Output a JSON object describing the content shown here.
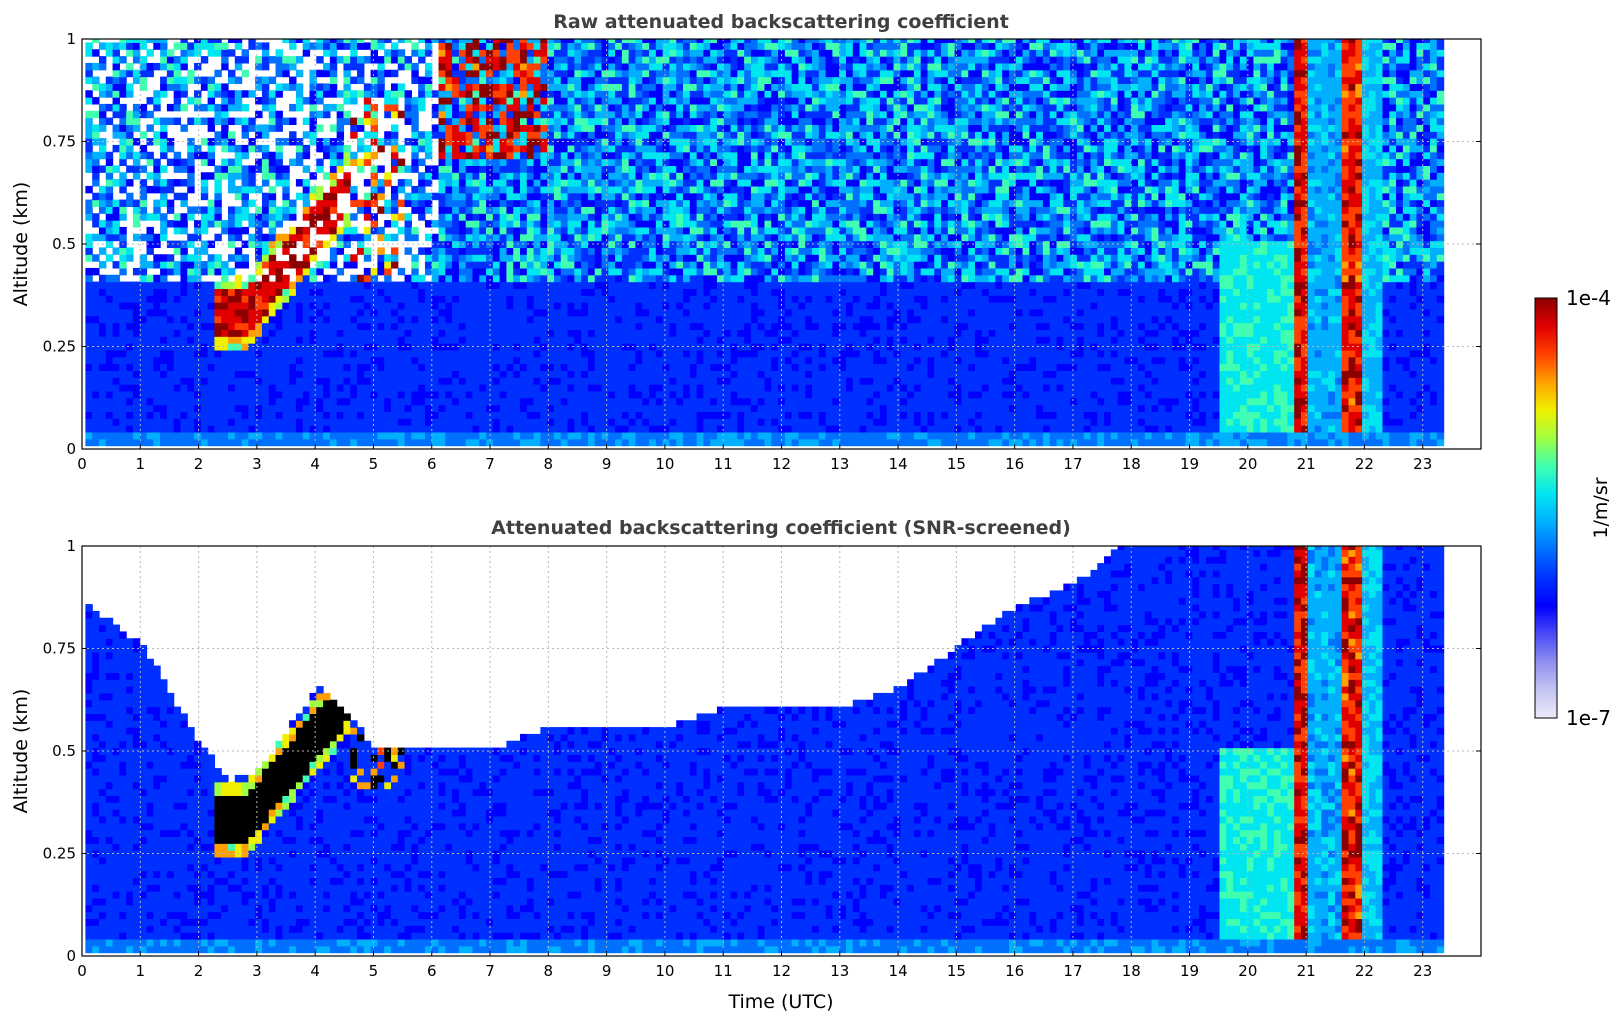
{
  "chart_data": [
    {
      "type": "heatmap",
      "title": "Raw attenuated backscattering coefficient",
      "xlabel": "",
      "ylabel": "Altitude (km)",
      "xlim": [
        0,
        24
      ],
      "ylim": [
        0,
        1
      ],
      "xticks": [
        "0",
        "1",
        "2",
        "3",
        "4",
        "5",
        "6",
        "7",
        "8",
        "9",
        "10",
        "11",
        "12",
        "13",
        "14",
        "15",
        "16",
        "17",
        "18",
        "19",
        "20",
        "21",
        "22",
        "23"
      ],
      "yticks": [
        "0",
        "0.25",
        "0.5",
        "0.75",
        "1"
      ],
      "grid": true,
      "data_end_hour": 23.3,
      "features": [
        {
          "name": "boundary layer plume",
          "x_range": [
            2.2,
            5.5
          ],
          "altitude_km": [
            0.27,
            0.85
          ],
          "level": "high"
        },
        {
          "name": "cloud patches",
          "x_range": [
            6.0,
            7.9
          ],
          "altitude_km": [
            0.7,
            1.0
          ],
          "level": "high"
        },
        {
          "name": "rain column 1",
          "x_range": [
            20.75,
            21.0
          ],
          "altitude_km": [
            0,
            1
          ],
          "level": "high"
        },
        {
          "name": "rain column 2",
          "x_range": [
            21.5,
            21.9
          ],
          "altitude_km": [
            0,
            1
          ],
          "level": "high"
        },
        {
          "name": "enhanced layer",
          "x_range": [
            19.5,
            20.8
          ],
          "altitude_km": [
            0,
            0.5
          ],
          "level": "medium"
        }
      ]
    },
    {
      "type": "heatmap",
      "title": "Attenuated backscattering coefficient (SNR-screened)",
      "xlabel": "Time (UTC)",
      "ylabel": "Altitude (km)",
      "xlim": [
        0,
        24
      ],
      "ylim": [
        0,
        1
      ],
      "xticks": [
        "0",
        "1",
        "2",
        "3",
        "4",
        "5",
        "6",
        "7",
        "8",
        "9",
        "10",
        "11",
        "12",
        "13",
        "14",
        "15",
        "16",
        "17",
        "18",
        "19",
        "20",
        "21",
        "22",
        "23"
      ],
      "yticks": [
        "0",
        "0.25",
        "0.5",
        "0.75",
        "1"
      ],
      "grid": true,
      "data_end_hour": 23.3,
      "screened_top_km": [
        [
          0,
          0.85
        ],
        [
          1,
          0.75
        ],
        [
          2,
          0.5
        ],
        [
          2.5,
          0.42
        ],
        [
          3,
          0.45
        ],
        [
          4,
          0.65
        ],
        [
          5,
          0.5
        ],
        [
          6,
          0.5
        ],
        [
          7,
          0.5
        ],
        [
          8,
          0.55
        ],
        [
          9,
          0.55
        ],
        [
          10,
          0.55
        ],
        [
          11,
          0.6
        ],
        [
          12,
          0.6
        ],
        [
          13,
          0.6
        ],
        [
          14,
          0.65
        ],
        [
          15,
          0.75
        ],
        [
          16,
          0.85
        ],
        [
          17,
          0.9
        ],
        [
          17.8,
          1.0
        ],
        [
          23.3,
          1.0
        ]
      ]
    }
  ],
  "colorbar": {
    "label": "1/m/sr",
    "max_label": "1e-4",
    "min_label": "1e-7",
    "colors": [
      "#ececfa",
      "#c4c4f2",
      "#8f8fee",
      "#4a4af6",
      "#0000ff",
      "#0030ff",
      "#0070ff",
      "#00b0ff",
      "#00e6f0",
      "#40ffb0",
      "#a0ff40",
      "#f0f000",
      "#ffa000",
      "#ff4000",
      "#e00000",
      "#8b0000"
    ]
  }
}
